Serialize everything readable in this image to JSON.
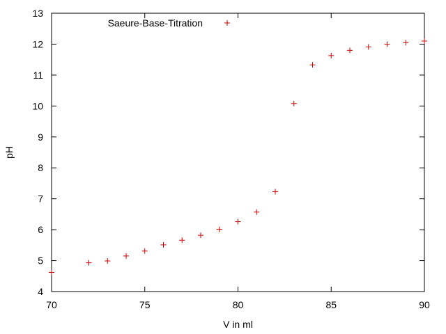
{
  "chart_data": {
    "type": "scatter",
    "title": "",
    "xlabel": "V in ml",
    "ylabel": "pH",
    "xlim": [
      70,
      90
    ],
    "ylim": [
      4,
      13
    ],
    "x_ticks": [
      70,
      75,
      80,
      85,
      90
    ],
    "y_ticks": [
      4,
      5,
      6,
      7,
      8,
      9,
      10,
      11,
      12,
      13
    ],
    "grid": false,
    "legend_position": "top",
    "marker": "plus",
    "series": [
      {
        "name": "Saeure-Base-Titration",
        "color": "#cc0000",
        "points": [
          {
            "x": 70,
            "y": 4.62
          },
          {
            "x": 72,
            "y": 4.93
          },
          {
            "x": 73,
            "y": 4.99
          },
          {
            "x": 74,
            "y": 5.15
          },
          {
            "x": 75,
            "y": 5.31
          },
          {
            "x": 76,
            "y": 5.51
          },
          {
            "x": 77,
            "y": 5.66
          },
          {
            "x": 78,
            "y": 5.82
          },
          {
            "x": 79,
            "y": 6.01
          },
          {
            "x": 80,
            "y": 6.26
          },
          {
            "x": 81,
            "y": 6.57
          },
          {
            "x": 82,
            "y": 7.23
          },
          {
            "x": 83,
            "y": 10.08
          },
          {
            "x": 84,
            "y": 11.33
          },
          {
            "x": 85,
            "y": 11.63
          },
          {
            "x": 86,
            "y": 11.8
          },
          {
            "x": 87,
            "y": 11.91
          },
          {
            "x": 88,
            "y": 12.0
          },
          {
            "x": 89,
            "y": 12.05
          },
          {
            "x": 90,
            "y": 12.1
          }
        ]
      }
    ]
  }
}
